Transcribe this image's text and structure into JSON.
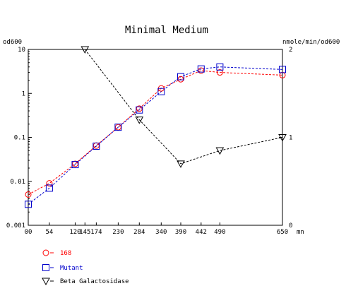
{
  "chart_data": {
    "type": "line",
    "title": "Minimal Medium",
    "xlabel": "mn",
    "ylabel_left": "od600",
    "ylabel_right": "nmole/min/od600",
    "x_ticks": [
      {
        "value": 0,
        "label": "00"
      },
      {
        "value": 54,
        "label": "54"
      },
      {
        "value": 120,
        "label": "120"
      },
      {
        "value": 145,
        "label": "145"
      },
      {
        "value": 174,
        "label": "174"
      },
      {
        "value": 230,
        "label": "230"
      },
      {
        "value": 284,
        "label": "284"
      },
      {
        "value": 340,
        "label": "340"
      },
      {
        "value": 390,
        "label": "390"
      },
      {
        "value": 442,
        "label": "442"
      },
      {
        "value": 490,
        "label": "490"
      },
      {
        "value": 650,
        "label": "650"
      }
    ],
    "xlim": [
      0,
      650
    ],
    "y_left": {
      "scale": "log",
      "lim": [
        0.001,
        10
      ],
      "ticks": [
        {
          "value": 10,
          "label": "10"
        },
        {
          "value": 1,
          "label": "1"
        },
        {
          "value": 0.1,
          "label": "0.1"
        },
        {
          "value": 0.01,
          "label": "0.01"
        },
        {
          "value": 0.001,
          "label": "0.001"
        }
      ]
    },
    "y_right": {
      "scale": "linear",
      "lim": [
        0,
        2
      ],
      "ticks": [
        {
          "value": 2,
          "label": "2"
        },
        {
          "value": 1,
          "label": "1"
        },
        {
          "value": 0,
          "label": "0"
        }
      ]
    },
    "series": [
      {
        "name": "168",
        "color": "#ff0000",
        "marker": "circle",
        "axis": "left",
        "x": [
          0,
          54,
          120,
          174,
          230,
          284,
          340,
          390,
          442,
          490,
          650
        ],
        "y": [
          0.005,
          0.009,
          0.025,
          0.065,
          0.17,
          0.45,
          1.3,
          2.1,
          3.3,
          3.0,
          2.6
        ]
      },
      {
        "name": "Mutant",
        "color": "#0000cc",
        "marker": "square",
        "axis": "left",
        "x": [
          0,
          54,
          120,
          174,
          230,
          284,
          340,
          390,
          442,
          490,
          650
        ],
        "y": [
          0.003,
          0.007,
          0.024,
          0.063,
          0.17,
          0.42,
          1.1,
          2.4,
          3.6,
          4.0,
          3.5
        ]
      },
      {
        "name": "Beta Galactosidase",
        "color": "#000000",
        "marker": "triangle-down",
        "axis": "right",
        "x": [
          145,
          284,
          390,
          490,
          650
        ],
        "y": [
          2.0,
          1.2,
          0.7,
          0.85,
          1.0
        ]
      }
    ],
    "grid": false,
    "legend": "bottom-left"
  }
}
